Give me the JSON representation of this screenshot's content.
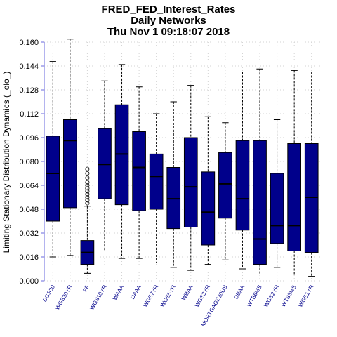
{
  "title_lines": [
    "FRED_FED_Interest_Rates",
    "Daily Networks",
    "Thu Nov  1 09:18:07 2018"
  ],
  "colors": {
    "box_fill": "#00008b",
    "axis": "#6a6adf",
    "grid": "#d3d3d3",
    "label": "#00008b"
  },
  "chart_data": {
    "type": "box",
    "ylabel": "Limiting Stationary Distribution Dynamics (_olo_)",
    "ylim": [
      0,
      0.16
    ],
    "yticks": [
      "0.000",
      "0.016",
      "0.032",
      "0.048",
      "0.064",
      "0.080",
      "0.096",
      "0.112",
      "0.128",
      "0.144",
      "0.160"
    ],
    "grid": true,
    "categories": [
      "DGS30",
      "WGS20YR",
      "FF",
      "WGS10YR",
      "WAAA",
      "DAAA",
      "WGS7YR",
      "WGS5YR",
      "WBAA",
      "WGS3YR",
      "MORTGAGE30US",
      "DBAA",
      "WTB6MS",
      "WGS2YR",
      "WTB3MS",
      "WGS1YR"
    ],
    "boxes": [
      {
        "min": 0.016,
        "q1": 0.04,
        "median": 0.072,
        "q3": 0.097,
        "max": 0.147
      },
      {
        "min": 0.017,
        "q1": 0.049,
        "median": 0.094,
        "q3": 0.108,
        "max": 0.162
      },
      {
        "min": 0.005,
        "q1": 0.011,
        "median": 0.019,
        "q3": 0.027,
        "max": 0.05,
        "outliers": [
          0.052,
          0.054,
          0.056,
          0.058,
          0.06,
          0.062,
          0.064,
          0.066,
          0.069,
          0.072,
          0.075
        ]
      },
      {
        "min": 0.02,
        "q1": 0.055,
        "median": 0.078,
        "q3": 0.102,
        "max": 0.134
      },
      {
        "min": 0.015,
        "q1": 0.051,
        "median": 0.085,
        "q3": 0.118,
        "max": 0.145
      },
      {
        "min": 0.015,
        "q1": 0.047,
        "median": 0.076,
        "q3": 0.1,
        "max": 0.13
      },
      {
        "min": 0.012,
        "q1": 0.048,
        "median": 0.07,
        "q3": 0.085,
        "max": 0.112
      },
      {
        "min": 0.009,
        "q1": 0.035,
        "median": 0.055,
        "q3": 0.076,
        "max": 0.12
      },
      {
        "min": 0.007,
        "q1": 0.036,
        "median": 0.063,
        "q3": 0.096,
        "max": 0.131
      },
      {
        "min": 0.011,
        "q1": 0.024,
        "median": 0.046,
        "q3": 0.073,
        "max": 0.11
      },
      {
        "min": 0.014,
        "q1": 0.042,
        "median": 0.065,
        "q3": 0.086,
        "max": 0.106
      },
      {
        "min": 0.008,
        "q1": 0.034,
        "median": 0.055,
        "q3": 0.094,
        "max": 0.14
      },
      {
        "min": 0.004,
        "q1": 0.011,
        "median": 0.028,
        "q3": 0.094,
        "max": 0.142
      },
      {
        "min": 0.009,
        "q1": 0.025,
        "median": 0.037,
        "q3": 0.072,
        "max": 0.108
      },
      {
        "min": 0.004,
        "q1": 0.02,
        "median": 0.037,
        "q3": 0.092,
        "max": 0.141
      },
      {
        "min": 0.003,
        "q1": 0.019,
        "median": 0.056,
        "q3": 0.092,
        "max": 0.14
      }
    ]
  }
}
